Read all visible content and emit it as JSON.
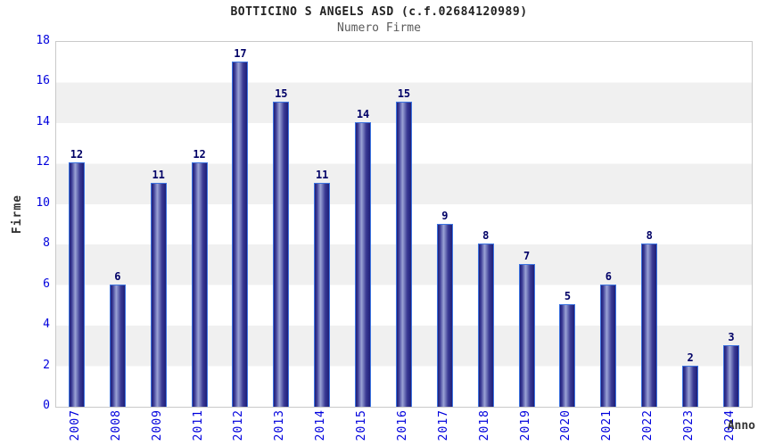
{
  "chart_data": {
    "type": "bar",
    "title": "BOTTICINO S ANGELS ASD (c.f.02684120989)",
    "subtitle": "Numero Firme",
    "xlabel": "Anno",
    "ylabel": "Firme",
    "categories": [
      "2007",
      "2008",
      "2009",
      "2011",
      "2012",
      "2013",
      "2014",
      "2015",
      "2016",
      "2017",
      "2018",
      "2019",
      "2020",
      "2021",
      "2022",
      "2023",
      "2024"
    ],
    "values": [
      12,
      6,
      11,
      12,
      17,
      15,
      11,
      14,
      15,
      9,
      8,
      7,
      5,
      6,
      8,
      2,
      3
    ],
    "ylim": [
      0,
      18
    ],
    "ytick_step": 2,
    "grid": "horizontal-alternating-bands",
    "legend": "none",
    "colors": {
      "bar_border": "#3d74e0",
      "bar_dark": "#1e1e78",
      "bar_light": "#9ba3d6",
      "tick_text": "#0000dd",
      "value_label": "#000066",
      "axis_title": "#333333",
      "band_gray": "#f0f0f0",
      "plot_border": "#c9c9c9",
      "title_color": "#222222",
      "subtitle_color": "#5a5a5a"
    }
  }
}
